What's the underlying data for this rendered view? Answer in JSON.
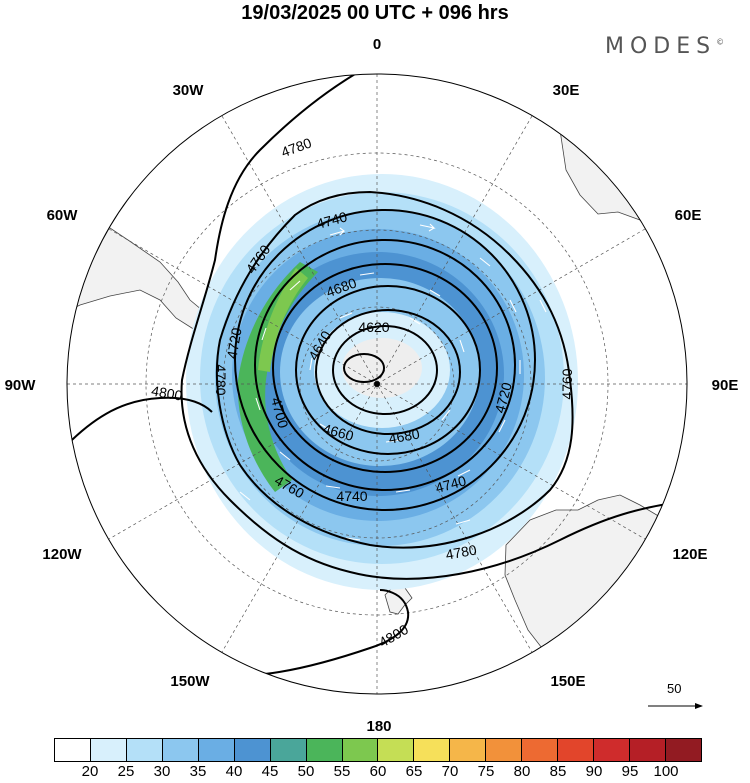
{
  "title": "19/03/2025  00 UTC  + 096 hrs",
  "brand": {
    "name": "MODES",
    "mark": "©"
  },
  "longitude_labels": [
    "0",
    "30E",
    "60E",
    "90E",
    "120E",
    "150E",
    "180",
    "150W",
    "120W",
    "90W",
    "60W",
    "30W"
  ],
  "contour_labels": [
    "4780",
    "4740",
    "4760",
    "4680",
    "4620",
    "4640",
    "4720",
    "4780",
    "4800",
    "4700",
    "4660",
    "4680",
    "4720",
    "4760",
    "4760",
    "4740",
    "4740",
    "4780",
    "4800"
  ],
  "reference_vector": {
    "label": "50"
  },
  "colorbar": {
    "colors": [
      "#ffffff",
      "#d8f0fc",
      "#b4e0f8",
      "#8cc7ef",
      "#6aaee4",
      "#4d93d2",
      "#4aa69a",
      "#4bb55a",
      "#7dc84f",
      "#c5de55",
      "#f6e05a",
      "#f5b649",
      "#f2913a",
      "#ed6a32",
      "#e2452b",
      "#cf2c2c",
      "#b51f26",
      "#921b22"
    ],
    "ticks": [
      "20",
      "25",
      "30",
      "35",
      "40",
      "45",
      "50",
      "55",
      "60",
      "65",
      "70",
      "75",
      "80",
      "85",
      "90",
      "95",
      "100"
    ]
  }
}
